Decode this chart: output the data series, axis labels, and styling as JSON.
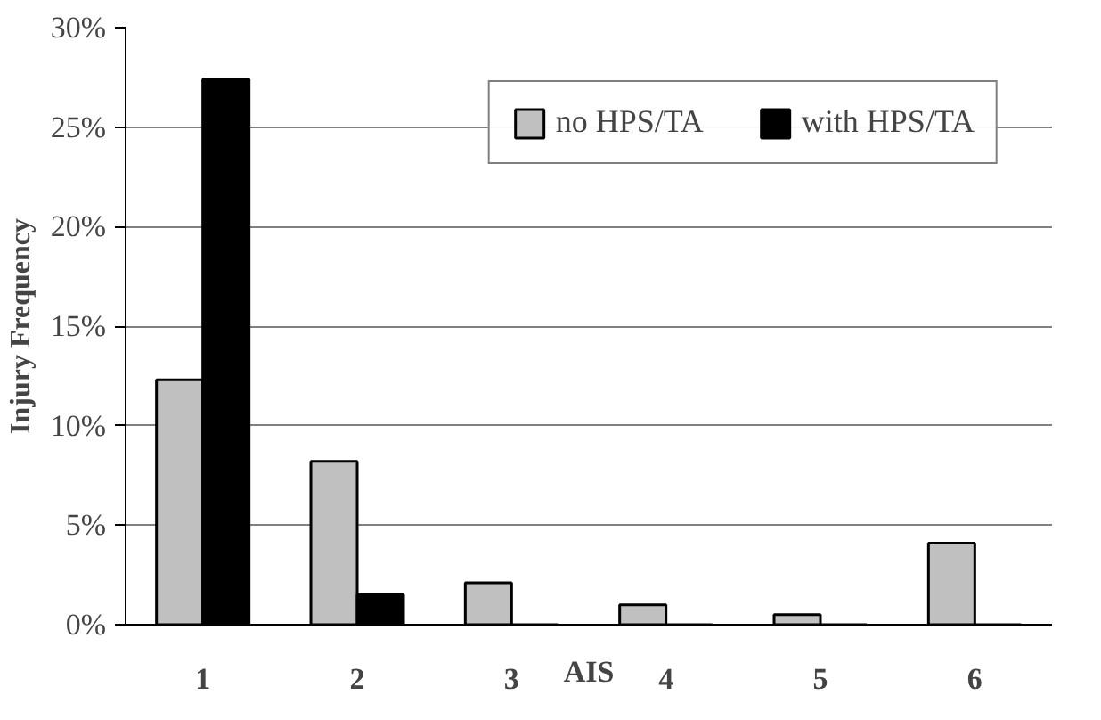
{
  "chart_data": {
    "type": "bar",
    "xlabel": "AIS",
    "ylabel": "Injury Frequency",
    "categories": [
      "1",
      "2",
      "3",
      "4",
      "5",
      "6"
    ],
    "series": [
      {
        "name": "no HPS/TA",
        "color": "#c0c0c0",
        "values": [
          12.3,
          8.2,
          2.1,
          1.0,
          0.5,
          4.1
        ]
      },
      {
        "name": "with HPS/TA",
        "color": "#000000",
        "values": [
          27.4,
          1.5,
          0,
          0,
          0,
          0
        ]
      }
    ],
    "ylim": [
      0,
      30
    ],
    "yticks": [
      {
        "value": 0,
        "label": "0%"
      },
      {
        "value": 5,
        "label": "5%"
      },
      {
        "value": 10,
        "label": "10%"
      },
      {
        "value": 15,
        "label": "15%"
      },
      {
        "value": 20,
        "label": "20%"
      },
      {
        "value": 25,
        "label": "25%"
      },
      {
        "value": 30,
        "label": "30%"
      }
    ],
    "grid": "y",
    "legend": "top right"
  }
}
